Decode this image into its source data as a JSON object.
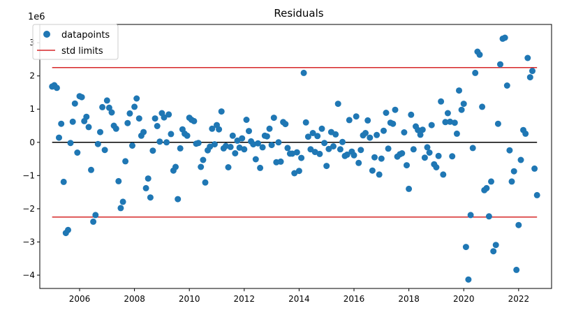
{
  "chart_data": {
    "type": "scatter",
    "title": "Residuals",
    "xlabel": "",
    "ylabel": "",
    "scale_label": "1e6",
    "xlim": [
      2004.55,
      2023.2
    ],
    "ylim": [
      -4.4,
      3.55
    ],
    "x_ticks": [
      2006,
      2008,
      2010,
      2012,
      2014,
      2016,
      2018,
      2020,
      2022
    ],
    "x_tick_labels": [
      "2006",
      "2008",
      "2010",
      "2012",
      "2014",
      "2016",
      "2018",
      "2020",
      "2022"
    ],
    "y_ticks": [
      -4,
      -3,
      -2,
      -1,
      0,
      1,
      2,
      3
    ],
    "y_tick_labels": [
      "−4",
      "−3",
      "−2",
      "−1",
      "0",
      "1",
      "2",
      "3"
    ],
    "grid": false,
    "legend": {
      "placement": "top-left",
      "entries": [
        "datapoints",
        "std limits"
      ]
    },
    "colors": {
      "datapoints": "#1f77b4",
      "std_limits": "#d62728",
      "zero_line": "#000000"
    },
    "series": [
      {
        "name": "datapoints",
        "points": [
          [
            2005.0,
            1.68
          ],
          [
            2005.08,
            1.72
          ],
          [
            2005.17,
            1.64
          ],
          [
            2005.25,
            0.14
          ],
          [
            2005.33,
            0.56
          ],
          [
            2005.42,
            -1.19
          ],
          [
            2005.5,
            -2.73
          ],
          [
            2005.58,
            -2.64
          ],
          [
            2005.67,
            -0.02
          ],
          [
            2005.75,
            0.62
          ],
          [
            2005.83,
            1.17
          ],
          [
            2005.92,
            -0.31
          ],
          [
            2006.0,
            1.39
          ],
          [
            2006.08,
            1.36
          ],
          [
            2006.17,
            0.64
          ],
          [
            2006.25,
            0.77
          ],
          [
            2006.33,
            0.46
          ],
          [
            2006.42,
            -0.83
          ],
          [
            2006.5,
            -2.39
          ],
          [
            2006.58,
            -2.19
          ],
          [
            2006.67,
            -0.05
          ],
          [
            2006.75,
            0.31
          ],
          [
            2006.83,
            1.06
          ],
          [
            2006.92,
            -0.23
          ],
          [
            2007.0,
            1.26
          ],
          [
            2007.08,
            1.04
          ],
          [
            2007.17,
            0.9
          ],
          [
            2007.25,
            0.5
          ],
          [
            2007.33,
            0.41
          ],
          [
            2007.42,
            -1.17
          ],
          [
            2007.5,
            -1.98
          ],
          [
            2007.58,
            -1.79
          ],
          [
            2007.67,
            -0.57
          ],
          [
            2007.75,
            0.58
          ],
          [
            2007.83,
            0.87
          ],
          [
            2007.92,
            -0.1
          ],
          [
            2008.0,
            1.07
          ],
          [
            2008.08,
            1.32
          ],
          [
            2008.17,
            0.72
          ],
          [
            2008.25,
            0.2
          ],
          [
            2008.33,
            0.31
          ],
          [
            2008.42,
            -1.38
          ],
          [
            2008.5,
            -1.09
          ],
          [
            2008.58,
            -1.66
          ],
          [
            2008.67,
            -0.25
          ],
          [
            2008.75,
            0.72
          ],
          [
            2008.83,
            0.49
          ],
          [
            2008.92,
            0.02
          ],
          [
            2009.0,
            0.88
          ],
          [
            2009.08,
            0.75
          ],
          [
            2009.17,
            0.0
          ],
          [
            2009.25,
            0.84
          ],
          [
            2009.33,
            0.25
          ],
          [
            2009.42,
            -0.85
          ],
          [
            2009.5,
            -0.74
          ],
          [
            2009.58,
            -1.71
          ],
          [
            2009.67,
            -0.18
          ],
          [
            2009.75,
            0.39
          ],
          [
            2009.83,
            0.26
          ],
          [
            2009.92,
            0.2
          ],
          [
            2010.0,
            0.74
          ],
          [
            2010.08,
            0.68
          ],
          [
            2010.17,
            0.64
          ],
          [
            2010.25,
            -0.04
          ],
          [
            2010.33,
            -0.02
          ],
          [
            2010.42,
            -0.74
          ],
          [
            2010.5,
            -0.53
          ],
          [
            2010.58,
            -1.21
          ],
          [
            2010.67,
            -0.24
          ],
          [
            2010.75,
            -0.13
          ],
          [
            2010.83,
            0.41
          ],
          [
            2010.92,
            -0.06
          ],
          [
            2011.0,
            0.52
          ],
          [
            2011.08,
            0.39
          ],
          [
            2011.17,
            0.93
          ],
          [
            2011.25,
            -0.18
          ],
          [
            2011.33,
            -0.11
          ],
          [
            2011.42,
            -0.75
          ],
          [
            2011.5,
            -0.14
          ],
          [
            2011.58,
            0.2
          ],
          [
            2011.67,
            -0.33
          ],
          [
            2011.75,
            0.05
          ],
          [
            2011.83,
            -0.16
          ],
          [
            2011.92,
            0.12
          ],
          [
            2012.0,
            -0.21
          ],
          [
            2012.08,
            0.68
          ],
          [
            2012.17,
            0.34
          ],
          [
            2012.25,
            0.03
          ],
          [
            2012.33,
            -0.06
          ],
          [
            2012.42,
            -0.51
          ],
          [
            2012.5,
            -0.03
          ],
          [
            2012.58,
            -0.77
          ],
          [
            2012.67,
            -0.15
          ],
          [
            2012.75,
            0.2
          ],
          [
            2012.83,
            0.18
          ],
          [
            2012.92,
            0.41
          ],
          [
            2013.0,
            -0.08
          ],
          [
            2013.08,
            0.74
          ],
          [
            2013.17,
            -0.6
          ],
          [
            2013.25,
            0.0
          ],
          [
            2013.33,
            -0.58
          ],
          [
            2013.42,
            0.61
          ],
          [
            2013.5,
            0.55
          ],
          [
            2013.58,
            -0.17
          ],
          [
            2013.67,
            -0.34
          ],
          [
            2013.75,
            -0.34
          ],
          [
            2013.83,
            -0.93
          ],
          [
            2013.92,
            -0.3
          ],
          [
            2014.0,
            -0.86
          ],
          [
            2014.08,
            -0.47
          ],
          [
            2014.17,
            2.09
          ],
          [
            2014.25,
            0.6
          ],
          [
            2014.33,
            0.17
          ],
          [
            2014.42,
            -0.21
          ],
          [
            2014.5,
            0.28
          ],
          [
            2014.58,
            -0.29
          ],
          [
            2014.67,
            0.19
          ],
          [
            2014.75,
            -0.35
          ],
          [
            2014.83,
            0.41
          ],
          [
            2014.92,
            -0.02
          ],
          [
            2015.0,
            -0.71
          ],
          [
            2015.08,
            -0.2
          ],
          [
            2015.17,
            0.31
          ],
          [
            2015.25,
            -0.12
          ],
          [
            2015.33,
            0.24
          ],
          [
            2015.42,
            1.16
          ],
          [
            2015.5,
            -0.21
          ],
          [
            2015.58,
            0.01
          ],
          [
            2015.67,
            -0.41
          ],
          [
            2015.75,
            -0.37
          ],
          [
            2015.83,
            0.67
          ],
          [
            2015.92,
            -0.28
          ],
          [
            2016.0,
            -0.39
          ],
          [
            2016.08,
            0.78
          ],
          [
            2016.17,
            -0.62
          ],
          [
            2016.25,
            -0.23
          ],
          [
            2016.33,
            0.21
          ],
          [
            2016.42,
            0.28
          ],
          [
            2016.5,
            0.66
          ],
          [
            2016.58,
            0.14
          ],
          [
            2016.67,
            -0.85
          ],
          [
            2016.75,
            -0.45
          ],
          [
            2016.83,
            0.22
          ],
          [
            2016.92,
            -0.97
          ],
          [
            2017.0,
            -0.49
          ],
          [
            2017.08,
            0.35
          ],
          [
            2017.17,
            0.89
          ],
          [
            2017.25,
            -0.19
          ],
          [
            2017.33,
            0.59
          ],
          [
            2017.42,
            0.56
          ],
          [
            2017.5,
            0.98
          ],
          [
            2017.58,
            -0.43
          ],
          [
            2017.67,
            -0.36
          ],
          [
            2017.75,
            -0.33
          ],
          [
            2017.83,
            0.3
          ],
          [
            2017.92,
            -0.69
          ],
          [
            2018.0,
            -1.4
          ],
          [
            2018.08,
            0.83
          ],
          [
            2018.17,
            -0.21
          ],
          [
            2018.25,
            0.48
          ],
          [
            2018.33,
            0.37
          ],
          [
            2018.42,
            0.23
          ],
          [
            2018.5,
            0.38
          ],
          [
            2018.58,
            -0.46
          ],
          [
            2018.67,
            -0.15
          ],
          [
            2018.75,
            -0.31
          ],
          [
            2018.83,
            0.52
          ],
          [
            2018.92,
            -0.66
          ],
          [
            2019.0,
            -0.75
          ],
          [
            2019.08,
            -0.41
          ],
          [
            2019.17,
            1.23
          ],
          [
            2019.25,
            -0.97
          ],
          [
            2019.33,
            0.61
          ],
          [
            2019.42,
            0.88
          ],
          [
            2019.5,
            0.62
          ],
          [
            2019.58,
            -0.42
          ],
          [
            2019.67,
            0.59
          ],
          [
            2019.75,
            0.26
          ],
          [
            2019.83,
            1.56
          ],
          [
            2019.92,
            0.98
          ],
          [
            2020.0,
            1.16
          ],
          [
            2020.08,
            -3.15
          ],
          [
            2020.17,
            -4.13
          ],
          [
            2020.25,
            -2.19
          ],
          [
            2020.33,
            -0.17
          ],
          [
            2020.42,
            2.09
          ],
          [
            2020.5,
            2.73
          ],
          [
            2020.58,
            2.64
          ],
          [
            2020.67,
            1.07
          ],
          [
            2020.75,
            -1.44
          ],
          [
            2020.83,
            -1.38
          ],
          [
            2020.92,
            -2.23
          ],
          [
            2021.0,
            -1.18
          ],
          [
            2021.08,
            -3.28
          ],
          [
            2021.17,
            -3.09
          ],
          [
            2021.25,
            0.56
          ],
          [
            2021.33,
            2.35
          ],
          [
            2021.42,
            3.12
          ],
          [
            2021.5,
            3.15
          ],
          [
            2021.58,
            1.71
          ],
          [
            2021.67,
            -0.24
          ],
          [
            2021.75,
            -1.18
          ],
          [
            2021.83,
            -0.87
          ],
          [
            2021.92,
            -3.84
          ],
          [
            2022.0,
            -2.49
          ],
          [
            2022.08,
            -0.53
          ],
          [
            2022.17,
            0.37
          ],
          [
            2022.25,
            0.26
          ],
          [
            2022.33,
            2.54
          ],
          [
            2022.42,
            1.96
          ],
          [
            2022.5,
            2.15
          ],
          [
            2022.58,
            -0.79
          ],
          [
            2022.67,
            -1.59
          ]
        ]
      },
      {
        "name": "std limits",
        "x_range": [
          2005.0,
          2022.67
        ],
        "levels": [
          2.25,
          -2.25
        ]
      }
    ],
    "zero_line": {
      "x_range": [
        2005.0,
        2022.67
      ],
      "y": 0
    }
  }
}
